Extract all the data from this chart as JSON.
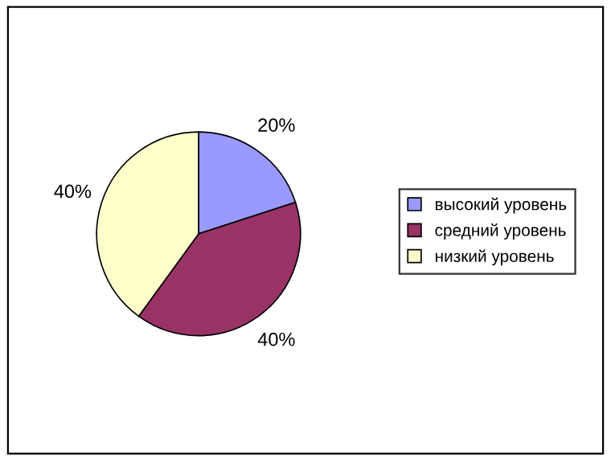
{
  "chart_data": {
    "type": "pie",
    "categories": [
      "высокий уровень",
      "средний уровень",
      "низкий уровень"
    ],
    "values": [
      20,
      40,
      40
    ],
    "colors": [
      "#9999ff",
      "#993366",
      "#ffffcc"
    ],
    "value_labels": [
      "20%",
      "40%",
      "40%"
    ],
    "legend": "right"
  }
}
